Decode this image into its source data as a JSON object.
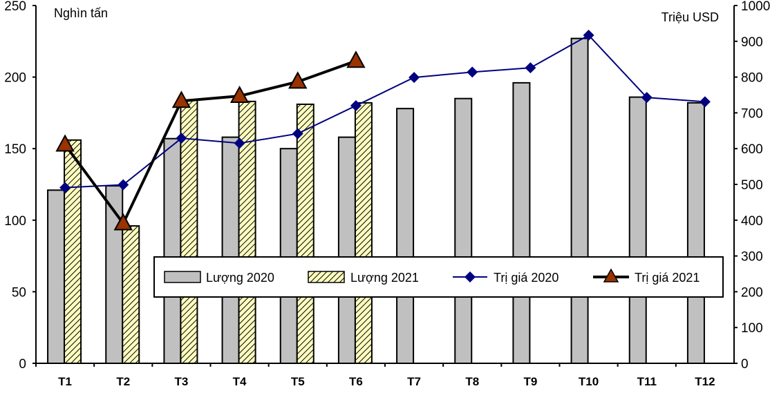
{
  "chart_data": {
    "type": "bar+line",
    "categories": [
      "T1",
      "T2",
      "T3",
      "T4",
      "T5",
      "T6",
      "T7",
      "T8",
      "T9",
      "T10",
      "T11",
      "T12"
    ],
    "left_axis": {
      "label": "Nghìn tấn",
      "range": [
        0,
        250
      ],
      "ticks": [
        0,
        50,
        100,
        150,
        200,
        250
      ]
    },
    "right_axis": {
      "label": "Triệu USD",
      "range": [
        0,
        1000
      ],
      "ticks": [
        0,
        100,
        200,
        300,
        400,
        500,
        600,
        700,
        800,
        900,
        1000
      ]
    },
    "series": [
      {
        "name": "Lượng 2020",
        "type": "bar",
        "axis": "left",
        "color": "#c0c0c0",
        "values": [
          121,
          124,
          157,
          158,
          150,
          158,
          178,
          185,
          196,
          227,
          186,
          182
        ]
      },
      {
        "name": "Lượng 2021",
        "type": "bar",
        "axis": "left",
        "color": "#ffffc0",
        "pattern": "hatched",
        "values": [
          156,
          96,
          184,
          183,
          181,
          182,
          null,
          null,
          null,
          null,
          null,
          null
        ]
      },
      {
        "name": "Trị giá 2020",
        "type": "line",
        "axis": "right",
        "color": "#000080",
        "marker": "diamond",
        "values": [
          491,
          499,
          629,
          615,
          642,
          720,
          799,
          814,
          826,
          917,
          743,
          731
        ]
      },
      {
        "name": "Trị giá 2021",
        "type": "line",
        "axis": "right",
        "color": "#000000",
        "marker": "triangle",
        "marker_color": "#993300",
        "values": [
          611,
          391,
          733,
          747,
          787,
          845,
          null,
          null,
          null,
          null,
          null,
          null
        ]
      }
    ],
    "legend": "inside-bottom-center",
    "grid": false
  }
}
